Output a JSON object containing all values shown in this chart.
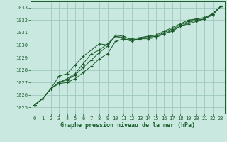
{
  "xlabel": "Graphe pression niveau de la mer (hPa)",
  "x_ticks": [
    0,
    1,
    2,
    3,
    4,
    5,
    6,
    7,
    8,
    9,
    10,
    11,
    12,
    13,
    14,
    15,
    16,
    17,
    18,
    19,
    20,
    21,
    22,
    23
  ],
  "ylim": [
    1024.5,
    1033.5
  ],
  "xlim": [
    -0.5,
    23.5
  ],
  "yticks": [
    1025,
    1026,
    1027,
    1028,
    1029,
    1030,
    1031,
    1032,
    1033
  ],
  "bg_color": "#c8e8e0",
  "grid_color": "#a0c8be",
  "line_color": "#1a5c2a",
  "series": [
    [
      1025.2,
      1025.7,
      1026.5,
      1027.0,
      1027.2,
      1027.6,
      1028.2,
      1028.8,
      1029.4,
      1029.9,
      1030.8,
      1030.7,
      1030.4,
      1030.5,
      1030.7,
      1030.7,
      1031.0,
      1031.3,
      1031.6,
      1031.9,
      1032.1,
      1032.2,
      1032.5,
      1033.1
    ],
    [
      1025.2,
      1025.7,
      1026.5,
      1026.9,
      1027.0,
      1027.3,
      1027.8,
      1028.3,
      1028.9,
      1029.3,
      1030.3,
      1030.5,
      1030.4,
      1030.5,
      1030.6,
      1030.7,
      1030.9,
      1031.2,
      1031.5,
      1031.8,
      1032.0,
      1032.1,
      1032.4,
      1033.1
    ],
    [
      1025.2,
      1025.7,
      1026.5,
      1027.0,
      1027.3,
      1027.7,
      1028.5,
      1029.3,
      1029.6,
      1030.1,
      1030.7,
      1030.6,
      1030.5,
      1030.6,
      1030.7,
      1030.8,
      1031.1,
      1031.4,
      1031.7,
      1032.0,
      1032.1,
      1032.2,
      1032.5,
      1033.1
    ],
    [
      1025.2,
      1025.7,
      1026.5,
      1027.5,
      1027.7,
      1028.4,
      1029.1,
      1029.6,
      1030.1,
      1030.0,
      1030.7,
      1030.5,
      1030.3,
      1030.5,
      1030.5,
      1030.6,
      1030.9,
      1031.1,
      1031.5,
      1031.7,
      1031.9,
      1032.1,
      1032.5,
      1033.1
    ]
  ]
}
